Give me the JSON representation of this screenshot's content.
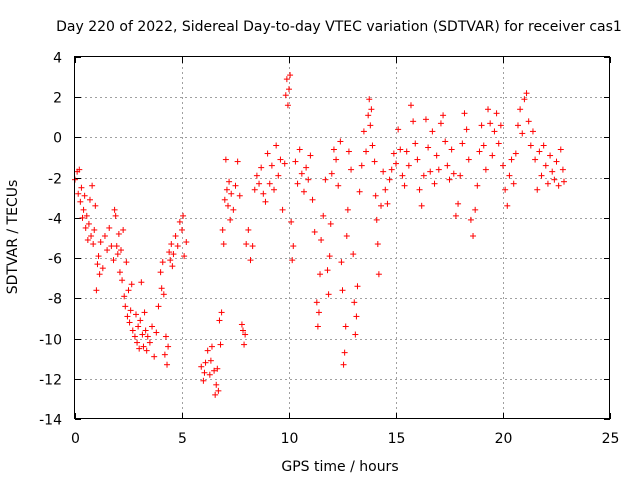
{
  "chart_data": {
    "type": "scatter",
    "title": "Day 220 of 2022, Sidereal Day-to-day VTEC variation (SDTVAR) for receiver cas1",
    "xlabel": "GPS time / hours",
    "ylabel": "SDTVAR / TECUs",
    "xlim": [
      0,
      25
    ],
    "ylim": [
      -14,
      4
    ],
    "xticks": [
      "0",
      "5",
      "10",
      "15",
      "20",
      "25"
    ],
    "yticks": [
      "-14",
      "-12",
      "-10",
      "-8",
      "-6",
      "-4",
      "-2",
      "0",
      "2",
      "4"
    ],
    "grid": true,
    "marker": "+",
    "series": [
      {
        "name": "SDTVAR",
        "color": "#ff0000",
        "points": [
          [
            0.0,
            -2.1
          ],
          [
            0.1,
            -1.7
          ],
          [
            0.15,
            -2.8
          ],
          [
            0.2,
            -1.6
          ],
          [
            0.25,
            -3.2
          ],
          [
            0.3,
            -2.5
          ],
          [
            0.35,
            -4.0
          ],
          [
            0.4,
            -3.6
          ],
          [
            0.45,
            -2.9
          ],
          [
            0.5,
            -4.5
          ],
          [
            0.55,
            -3.9
          ],
          [
            0.6,
            -5.1
          ],
          [
            0.65,
            -4.3
          ],
          [
            0.7,
            -3.1
          ],
          [
            0.75,
            -4.9
          ],
          [
            0.8,
            -2.4
          ],
          [
            0.85,
            -5.3
          ],
          [
            0.9,
            -4.6
          ],
          [
            0.95,
            -3.4
          ],
          [
            1.0,
            -7.6
          ],
          [
            1.05,
            -6.3
          ],
          [
            1.1,
            -5.9
          ],
          [
            1.15,
            -6.8
          ],
          [
            1.2,
            -5.2
          ],
          [
            1.3,
            -6.5
          ],
          [
            1.4,
            -4.9
          ],
          [
            1.5,
            -5.6
          ],
          [
            1.6,
            -4.5
          ],
          [
            1.7,
            -5.4
          ],
          [
            1.8,
            -6.1
          ],
          [
            1.85,
            -3.6
          ],
          [
            1.9,
            -3.9
          ],
          [
            1.95,
            -5.4
          ],
          [
            2.0,
            -5.8
          ],
          [
            2.05,
            -4.8
          ],
          [
            2.1,
            -6.7
          ],
          [
            2.15,
            -5.6
          ],
          [
            2.2,
            -7.1
          ],
          [
            2.25,
            -4.6
          ],
          [
            2.3,
            -7.9
          ],
          [
            2.35,
            -8.4
          ],
          [
            2.4,
            -6.2
          ],
          [
            2.45,
            -8.9
          ],
          [
            2.5,
            -7.6
          ],
          [
            2.55,
            -9.2
          ],
          [
            2.6,
            -8.6
          ],
          [
            2.65,
            -7.3
          ],
          [
            2.7,
            -9.6
          ],
          [
            2.8,
            -9.9
          ],
          [
            2.85,
            -8.8
          ],
          [
            2.9,
            -10.2
          ],
          [
            2.95,
            -9.4
          ],
          [
            3.0,
            -10.5
          ],
          [
            3.05,
            -9.1
          ],
          [
            3.1,
            -7.2
          ],
          [
            3.15,
            -9.8
          ],
          [
            3.2,
            -10.4
          ],
          [
            3.25,
            -8.7
          ],
          [
            3.3,
            -9.6
          ],
          [
            3.35,
            -10.6
          ],
          [
            3.4,
            -9.9
          ],
          [
            3.5,
            -10.2
          ],
          [
            3.6,
            -9.4
          ],
          [
            3.7,
            -10.9
          ],
          [
            3.8,
            -9.7
          ],
          [
            3.9,
            -8.4
          ],
          [
            4.0,
            -6.7
          ],
          [
            4.05,
            -7.5
          ],
          [
            4.1,
            -6.2
          ],
          [
            4.15,
            -7.8
          ],
          [
            4.2,
            -10.8
          ],
          [
            4.25,
            -9.9
          ],
          [
            4.3,
            -11.3
          ],
          [
            4.35,
            -10.4
          ],
          [
            4.4,
            -5.7
          ],
          [
            4.45,
            -6.1
          ],
          [
            4.5,
            -5.3
          ],
          [
            4.55,
            -6.4
          ],
          [
            4.6,
            -5.8
          ],
          [
            4.7,
            -4.9
          ],
          [
            4.8,
            -5.4
          ],
          [
            4.9,
            -4.2
          ],
          [
            5.0,
            -4.6
          ],
          [
            5.05,
            -3.9
          ],
          [
            5.1,
            -5.9
          ],
          [
            5.2,
            -5.2
          ],
          [
            5.9,
            -11.4
          ],
          [
            6.0,
            -12.1
          ],
          [
            6.05,
            -11.7
          ],
          [
            6.1,
            -11.2
          ],
          [
            6.2,
            -10.6
          ],
          [
            6.3,
            -11.8
          ],
          [
            6.35,
            -11.1
          ],
          [
            6.4,
            -10.4
          ],
          [
            6.5,
            -11.6
          ],
          [
            6.55,
            -12.8
          ],
          [
            6.6,
            -12.3
          ],
          [
            6.65,
            -11.5
          ],
          [
            6.7,
            -12.6
          ],
          [
            6.75,
            -9.1
          ],
          [
            6.8,
            -10.3
          ],
          [
            6.85,
            -8.7
          ],
          [
            6.9,
            -4.6
          ],
          [
            6.95,
            -5.3
          ],
          [
            7.0,
            -3.1
          ],
          [
            7.05,
            -1.1
          ],
          [
            7.1,
            -2.6
          ],
          [
            7.15,
            -3.4
          ],
          [
            7.2,
            -2.2
          ],
          [
            7.25,
            -4.1
          ],
          [
            7.3,
            -2.8
          ],
          [
            7.4,
            -3.6
          ],
          [
            7.5,
            -2.4
          ],
          [
            7.6,
            -1.2
          ],
          [
            7.7,
            -2.9
          ],
          [
            7.8,
            -9.3
          ],
          [
            7.85,
            -9.6
          ],
          [
            7.9,
            -10.3
          ],
          [
            7.95,
            -9.8
          ],
          [
            8.0,
            -5.3
          ],
          [
            8.1,
            -4.6
          ],
          [
            8.2,
            -6.1
          ],
          [
            8.3,
            -5.4
          ],
          [
            8.4,
            -2.6
          ],
          [
            8.5,
            -1.9
          ],
          [
            8.6,
            -2.3
          ],
          [
            8.7,
            -1.5
          ],
          [
            8.8,
            -2.8
          ],
          [
            8.9,
            -3.2
          ],
          [
            9.0,
            -0.8
          ],
          [
            9.1,
            -2.3
          ],
          [
            9.2,
            -1.4
          ],
          [
            9.3,
            -2.6
          ],
          [
            9.4,
            -0.4
          ],
          [
            9.5,
            -1.9
          ],
          [
            9.6,
            -1.1
          ],
          [
            9.7,
            -3.6
          ],
          [
            9.8,
            -1.3
          ],
          [
            9.85,
            2.1
          ],
          [
            9.9,
            2.9
          ],
          [
            9.95,
            1.6
          ],
          [
            10.0,
            2.4
          ],
          [
            10.05,
            3.1
          ],
          [
            10.1,
            -4.2
          ],
          [
            10.15,
            -6.1
          ],
          [
            10.2,
            -5.4
          ],
          [
            10.3,
            -1.2
          ],
          [
            10.4,
            -2.3
          ],
          [
            10.5,
            -0.6
          ],
          [
            10.6,
            -1.8
          ],
          [
            10.7,
            -2.7
          ],
          [
            10.8,
            -1.5
          ],
          [
            10.9,
            -2.1
          ],
          [
            11.0,
            -0.9
          ],
          [
            11.1,
            -3.1
          ],
          [
            11.2,
            -4.7
          ],
          [
            11.3,
            -8.2
          ],
          [
            11.35,
            -9.4
          ],
          [
            11.4,
            -8.7
          ],
          [
            11.45,
            -6.8
          ],
          [
            11.5,
            -5.1
          ],
          [
            11.6,
            -3.9
          ],
          [
            11.7,
            -2.1
          ],
          [
            11.8,
            -6.6
          ],
          [
            11.85,
            -7.8
          ],
          [
            11.9,
            -5.9
          ],
          [
            11.95,
            -4.3
          ],
          [
            12.0,
            -1.8
          ],
          [
            12.1,
            -0.6
          ],
          [
            12.2,
            -1.1
          ],
          [
            12.3,
            -2.4
          ],
          [
            12.4,
            -0.2
          ],
          [
            12.45,
            -6.2
          ],
          [
            12.5,
            -7.6
          ],
          [
            12.55,
            -11.3
          ],
          [
            12.6,
            -10.7
          ],
          [
            12.65,
            -9.4
          ],
          [
            12.7,
            -4.9
          ],
          [
            12.75,
            -3.6
          ],
          [
            12.8,
            -0.7
          ],
          [
            12.9,
            -1.6
          ],
          [
            13.0,
            -5.8
          ],
          [
            13.05,
            -8.2
          ],
          [
            13.1,
            -9.8
          ],
          [
            13.15,
            -8.9
          ],
          [
            13.2,
            -7.4
          ],
          [
            13.3,
            -2.7
          ],
          [
            13.4,
            -1.4
          ],
          [
            13.5,
            0.3
          ],
          [
            13.6,
            -0.7
          ],
          [
            13.7,
            1.1
          ],
          [
            13.75,
            1.9
          ],
          [
            13.8,
            0.6
          ],
          [
            13.85,
            1.4
          ],
          [
            13.9,
            -0.4
          ],
          [
            14.0,
            -1.2
          ],
          [
            14.05,
            -2.9
          ],
          [
            14.1,
            -4.1
          ],
          [
            14.15,
            -5.3
          ],
          [
            14.2,
            -6.8
          ],
          [
            14.3,
            -3.4
          ],
          [
            14.4,
            -1.7
          ],
          [
            14.5,
            -2.6
          ],
          [
            14.6,
            -3.3
          ],
          [
            14.7,
            -2.1
          ],
          [
            14.8,
            -1.6
          ],
          [
            14.9,
            -0.8
          ],
          [
            15.0,
            -1.3
          ],
          [
            15.1,
            0.4
          ],
          [
            15.2,
            -0.6
          ],
          [
            15.3,
            -1.9
          ],
          [
            15.4,
            -2.4
          ],
          [
            15.5,
            -0.7
          ],
          [
            15.6,
            -1.4
          ],
          [
            15.7,
            1.6
          ],
          [
            15.8,
            0.8
          ],
          [
            15.9,
            -0.3
          ],
          [
            16.0,
            -1.1
          ],
          [
            16.1,
            -2.6
          ],
          [
            16.2,
            -3.4
          ],
          [
            16.3,
            -1.9
          ],
          [
            16.4,
            0.9
          ],
          [
            16.5,
            -0.5
          ],
          [
            16.6,
            -1.7
          ],
          [
            16.7,
            0.3
          ],
          [
            16.8,
            -2.3
          ],
          [
            16.9,
            -0.9
          ],
          [
            17.0,
            -1.6
          ],
          [
            17.1,
            0.7
          ],
          [
            17.2,
            1.1
          ],
          [
            17.3,
            -0.2
          ],
          [
            17.4,
            -1.4
          ],
          [
            17.5,
            -2.1
          ],
          [
            17.6,
            -0.6
          ],
          [
            17.7,
            -1.8
          ],
          [
            17.8,
            -3.9
          ],
          [
            17.9,
            -3.3
          ],
          [
            18.0,
            -1.9
          ],
          [
            18.1,
            -0.3
          ],
          [
            18.2,
            1.2
          ],
          [
            18.3,
            0.4
          ],
          [
            18.4,
            -1.1
          ],
          [
            18.5,
            -4.1
          ],
          [
            18.6,
            -4.9
          ],
          [
            18.7,
            -3.6
          ],
          [
            18.8,
            -2.4
          ],
          [
            18.9,
            -0.7
          ],
          [
            19.0,
            0.6
          ],
          [
            19.1,
            -0.4
          ],
          [
            19.2,
            -1.6
          ],
          [
            19.3,
            1.4
          ],
          [
            19.4,
            0.7
          ],
          [
            19.5,
            -0.9
          ],
          [
            19.6,
            0.3
          ],
          [
            19.7,
            1.2
          ],
          [
            19.8,
            -0.3
          ],
          [
            19.9,
            0.6
          ],
          [
            20.0,
            -1.4
          ],
          [
            20.1,
            -2.6
          ],
          [
            20.2,
            -3.4
          ],
          [
            20.3,
            -1.9
          ],
          [
            20.4,
            -1.1
          ],
          [
            20.5,
            -2.3
          ],
          [
            20.6,
            -0.8
          ],
          [
            20.7,
            0.6
          ],
          [
            20.8,
            1.4
          ],
          [
            20.9,
            0.2
          ],
          [
            21.0,
            1.9
          ],
          [
            21.1,
            2.2
          ],
          [
            21.2,
            0.8
          ],
          [
            21.3,
            -0.4
          ],
          [
            21.4,
            0.3
          ],
          [
            21.5,
            -1.1
          ],
          [
            21.6,
            -2.6
          ],
          [
            21.7,
            -0.7
          ],
          [
            21.8,
            -1.9
          ],
          [
            21.9,
            -0.4
          ],
          [
            22.0,
            -1.4
          ],
          [
            22.1,
            -2.3
          ],
          [
            22.2,
            -0.9
          ],
          [
            22.3,
            -1.7
          ],
          [
            22.4,
            -2.1
          ],
          [
            22.5,
            -1.2
          ],
          [
            22.6,
            -2.4
          ],
          [
            22.7,
            -0.6
          ],
          [
            22.8,
            -1.6
          ],
          [
            22.85,
            -2.2
          ]
        ]
      }
    ]
  }
}
